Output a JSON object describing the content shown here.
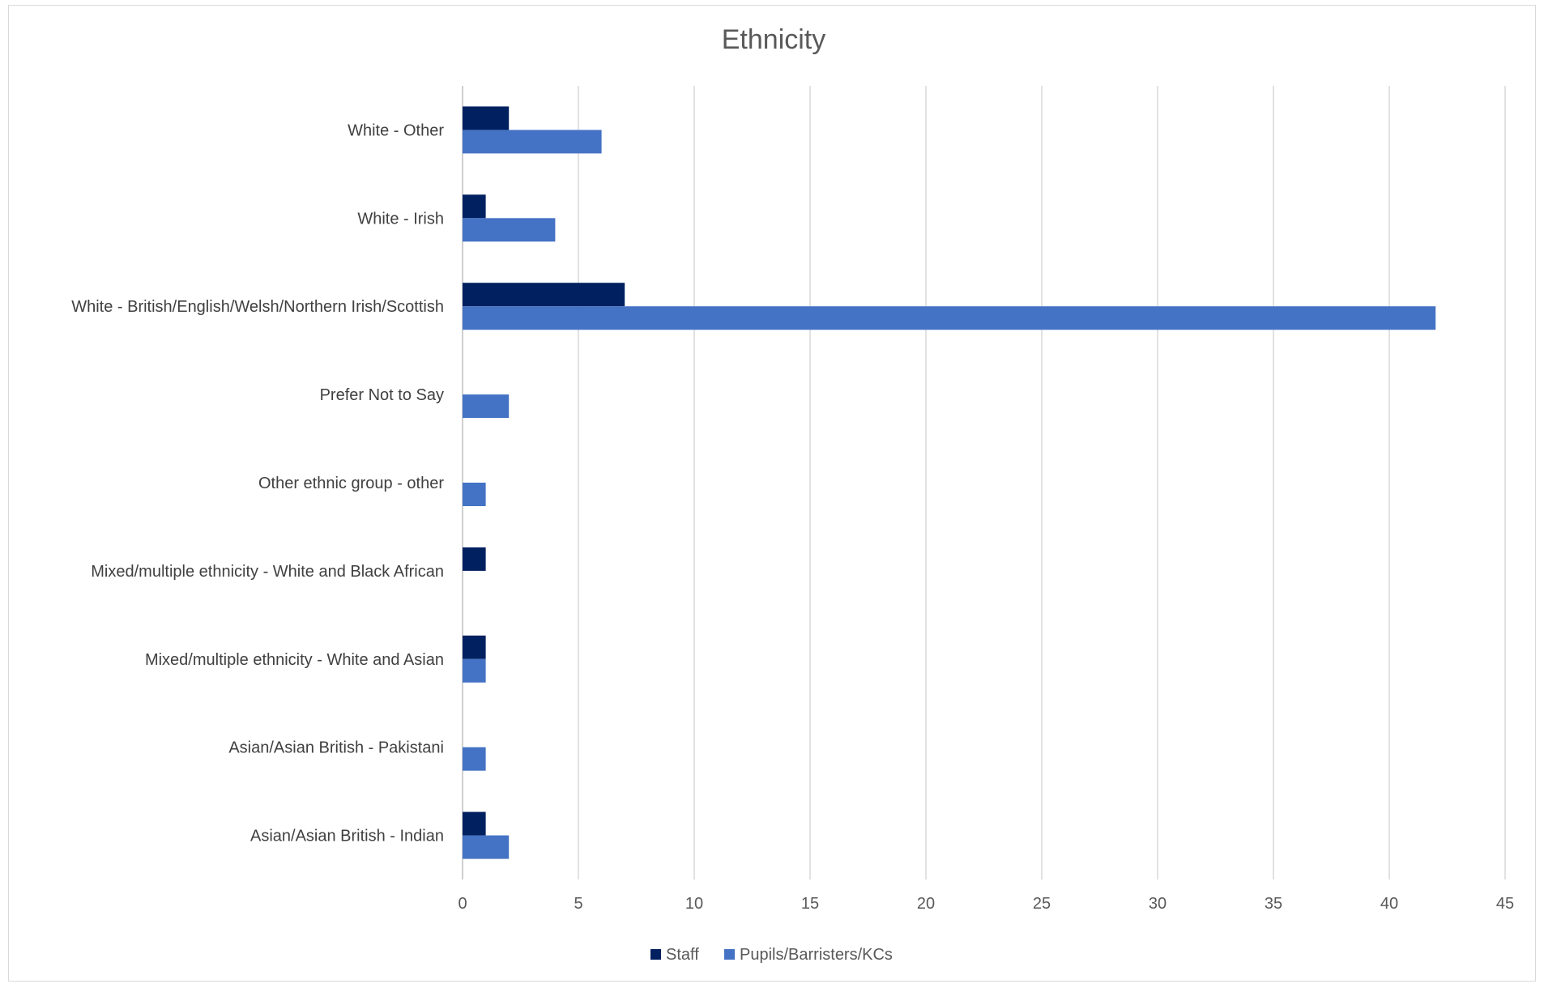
{
  "chart_data": {
    "type": "bar",
    "orientation": "horizontal",
    "title": "Ethnicity",
    "xlabel": "",
    "ylabel": "",
    "xlim": [
      0,
      45
    ],
    "xticks": [
      0,
      5,
      10,
      15,
      20,
      25,
      30,
      35,
      40,
      45
    ],
    "grid": "vertical",
    "legend_position": "bottom",
    "categories": [
      "White - Other",
      "White - Irish",
      "White - British/English/Welsh/Northern Irish/Scottish",
      "Prefer Not to Say",
      "Other ethnic group - other",
      "Mixed/multiple ethnicity - White and Black African",
      "Mixed/multiple ethnicity - White and Asian",
      "Asian/Asian British - Pakistani",
      "Asian/Asian British - Indian"
    ],
    "series": [
      {
        "name": "Staff",
        "color": "#002060",
        "values": [
          2,
          1,
          7,
          0,
          0,
          1,
          1,
          0,
          1
        ]
      },
      {
        "name": "Pupils/Barristers/KCs",
        "color": "#4472C4",
        "values": [
          6,
          4,
          42,
          2,
          1,
          0,
          1,
          1,
          2
        ]
      }
    ]
  }
}
